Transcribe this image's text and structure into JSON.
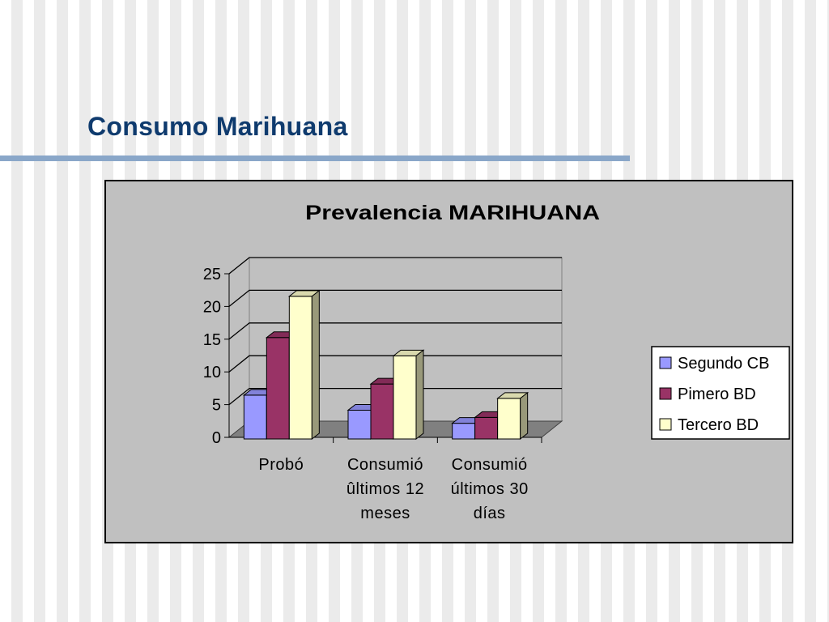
{
  "slide": {
    "title": "Consumo Marihuana"
  },
  "chart_data": {
    "type": "bar",
    "style": "3d-clustered-column",
    "title": "Prevalencia MARIHUANA",
    "xlabel": "",
    "ylabel": "",
    "ylim": [
      0,
      25
    ],
    "yticks": [
      0,
      5,
      10,
      15,
      20,
      25
    ],
    "grid": true,
    "legend_position": "right",
    "categories": [
      [
        "Probó"
      ],
      [
        "Consumió",
        "ûltimos 12",
        "meses"
      ],
      [
        "Consumió",
        "últimos 30",
        "días"
      ]
    ],
    "series": [
      {
        "name": "Segundo CB",
        "color": "#9999ff",
        "values": [
          6.7,
          4.4,
          2.4
        ]
      },
      {
        "name": "Pimero BD",
        "color": "#993366",
        "values": [
          15.5,
          8.4,
          3.3
        ]
      },
      {
        "name": "Tercero BD",
        "color": "#ffffcc",
        "values": [
          21.8,
          12.7,
          6.2
        ]
      }
    ]
  }
}
